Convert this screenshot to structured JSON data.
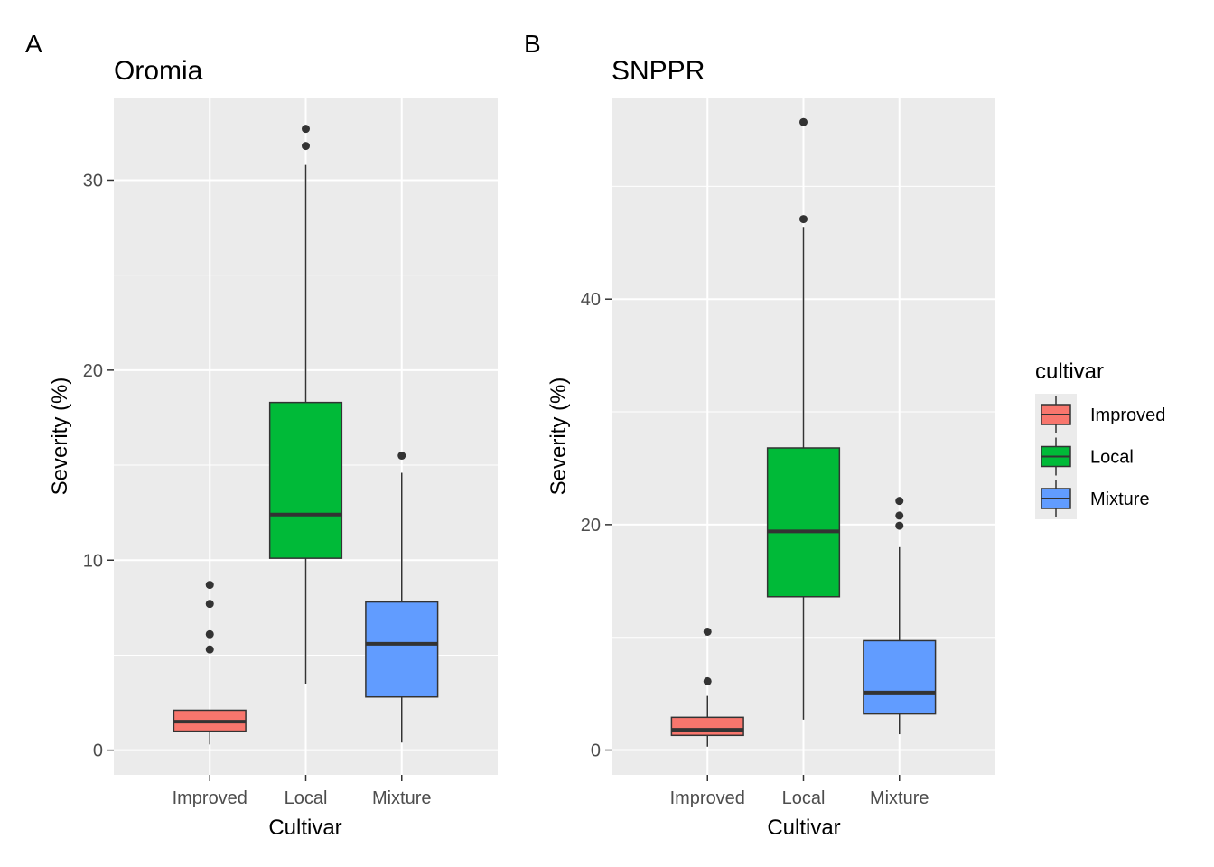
{
  "legend": {
    "title": "cultivar",
    "entries": [
      {
        "label": "Improved",
        "color": "#F8766D"
      },
      {
        "label": "Local",
        "color": "#00BA38"
      },
      {
        "label": "Mixture",
        "color": "#619CFF"
      }
    ]
  },
  "chart_data": [
    {
      "type": "box",
      "panel": "A",
      "title": "Oromia",
      "xlabel": "Cultivar",
      "ylabel": "Severity (%)",
      "categories": [
        "Improved",
        "Local",
        "Mixture"
      ],
      "ylim": [
        -1.3,
        34.3
      ],
      "yticks": [
        0,
        10,
        20,
        30
      ],
      "grid": true,
      "boxes": [
        {
          "category": "Improved",
          "whisker_low": 0.3,
          "q1": 1.0,
          "median": 1.5,
          "q3": 2.1,
          "whisker_high": 2.1,
          "outliers": [
            5.3,
            6.1,
            7.7,
            8.7
          ]
        },
        {
          "category": "Local",
          "whisker_low": 3.5,
          "q1": 10.1,
          "median": 12.4,
          "q3": 18.3,
          "whisker_high": 30.8,
          "outliers": [
            31.8,
            32.7
          ]
        },
        {
          "category": "Mixture",
          "whisker_low": 0.4,
          "q1": 2.8,
          "median": 5.6,
          "q3": 7.8,
          "whisker_high": 14.6,
          "outliers": [
            15.5
          ]
        }
      ]
    },
    {
      "type": "box",
      "panel": "B",
      "title": "SNPPR",
      "xlabel": "Cultivar",
      "ylabel": "Severity (%)",
      "categories": [
        "Improved",
        "Local",
        "Mixture"
      ],
      "ylim": [
        -2.2,
        57.8
      ],
      "yticks": [
        0,
        20,
        40
      ],
      "grid": true,
      "boxes": [
        {
          "category": "Improved",
          "whisker_low": 0.3,
          "q1": 1.3,
          "median": 1.8,
          "q3": 2.9,
          "whisker_high": 4.8,
          "outliers": [
            6.1,
            10.5
          ]
        },
        {
          "category": "Local",
          "whisker_low": 2.7,
          "q1": 13.6,
          "median": 19.4,
          "q3": 26.8,
          "whisker_high": 46.4,
          "outliers": [
            47.1,
            55.7
          ]
        },
        {
          "category": "Mixture",
          "whisker_low": 1.4,
          "q1": 3.2,
          "median": 5.1,
          "q3": 9.7,
          "whisker_high": 18.0,
          "outliers": [
            19.9,
            20.8,
            22.1
          ]
        }
      ]
    }
  ]
}
